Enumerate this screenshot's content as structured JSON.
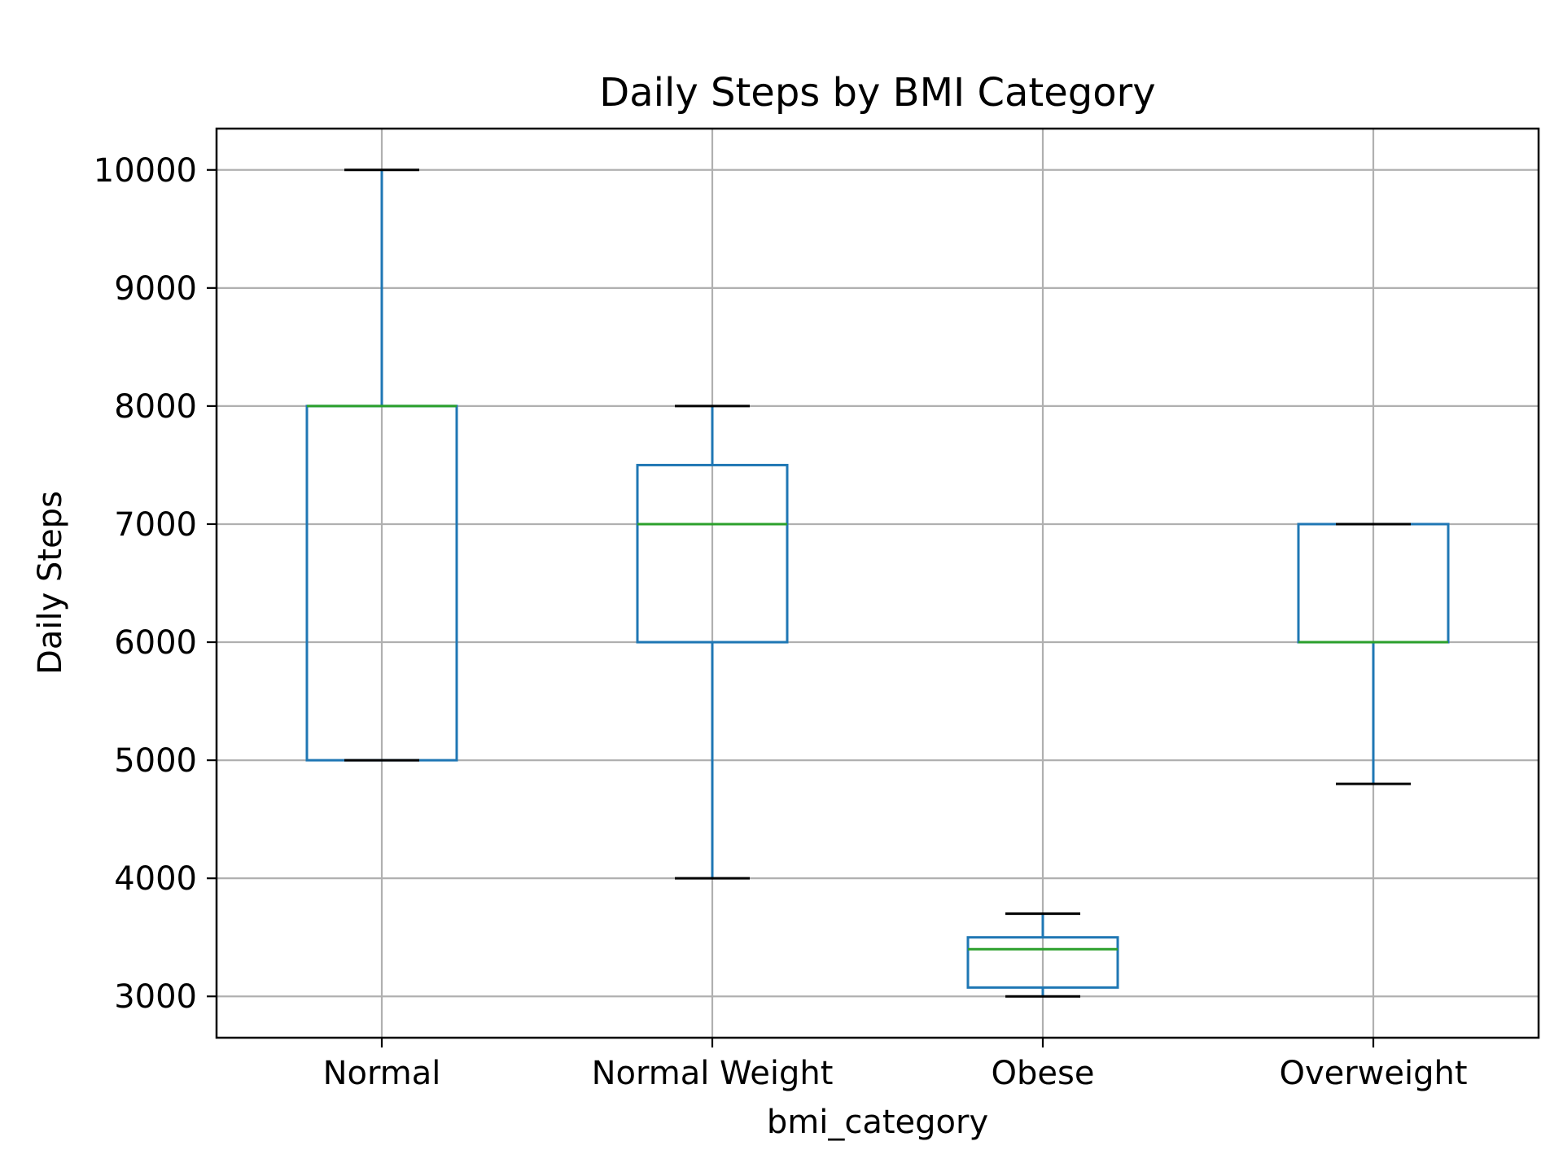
{
  "chart_data": {
    "type": "box",
    "title": "Daily Steps by BMI Category",
    "xlabel": "bmi_category",
    "ylabel": "Daily Steps",
    "ylim": [
      2650,
      10350
    ],
    "yticks": [
      3000,
      4000,
      5000,
      6000,
      7000,
      8000,
      9000,
      10000
    ],
    "grid": true,
    "categories": [
      "Normal",
      "Normal Weight",
      "Obese",
      "Overweight"
    ],
    "boxes": [
      {
        "category": "Normal",
        "whisker_low": 5000,
        "q1": 5000,
        "median": 8000,
        "q3": 8000,
        "whisker_high": 10000
      },
      {
        "category": "Normal Weight",
        "whisker_low": 4000,
        "q1": 6000,
        "median": 7000,
        "q3": 7500,
        "whisker_high": 8000
      },
      {
        "category": "Obese",
        "whisker_low": 3000,
        "q1": 3075,
        "median": 3400,
        "q3": 3500,
        "whisker_high": 3700
      },
      {
        "category": "Overweight",
        "whisker_low": 4800,
        "q1": 6000,
        "median": 6000,
        "q3": 7000,
        "whisker_high": 7000
      }
    ],
    "colors": {
      "box": "#1f77b4",
      "median": "#2ca02c",
      "cap": "#000000",
      "grid": "#b0b0b0",
      "frame": "#000000"
    }
  }
}
